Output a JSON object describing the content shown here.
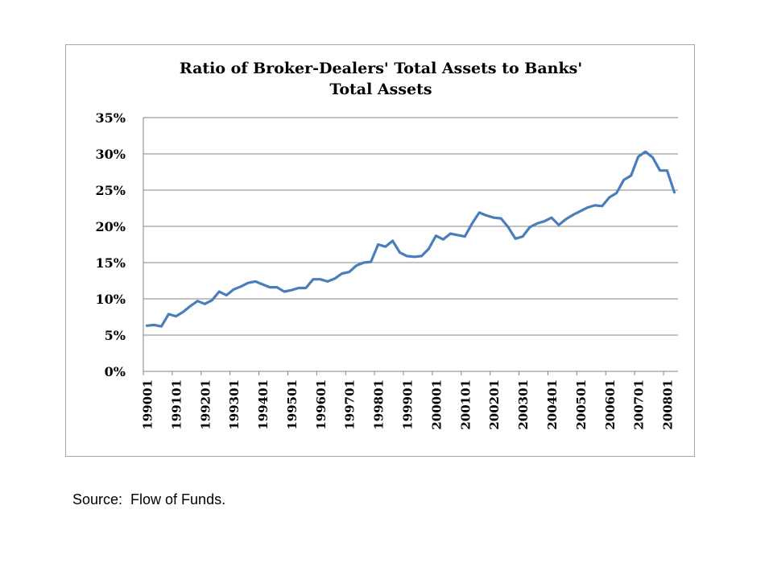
{
  "source_note": "Source:  Flow of Funds.",
  "colors": {
    "line": "#4a7ebb",
    "grid": "#868686",
    "frame": "#a6a6a6"
  },
  "chart_data": {
    "type": "line",
    "title_lines": [
      "Ratio of Broker-Dealers' Total Assets to Banks'",
      "Total Assets"
    ],
    "xlabel": "",
    "ylabel": "",
    "ylim": [
      0,
      0.35
    ],
    "yticks": [
      0,
      0.05,
      0.1,
      0.15,
      0.2,
      0.25,
      0.3,
      0.35
    ],
    "ytick_labels": [
      "0%",
      "5%",
      "10%",
      "15%",
      "20%",
      "25%",
      "30%",
      "35%"
    ],
    "xtick_labels": [
      "199001",
      "199101",
      "199201",
      "199301",
      "199401",
      "199501",
      "199601",
      "199701",
      "199801",
      "199901",
      "200001",
      "200101",
      "200201",
      "200301",
      "200401",
      "200501",
      "200601",
      "200701",
      "200801"
    ],
    "grid": true,
    "legend": false,
    "series": [
      {
        "x": [
          "1990Q1",
          "1990Q2",
          "1990Q3",
          "1990Q4",
          "1991Q1",
          "1991Q2",
          "1991Q3",
          "1991Q4",
          "1992Q1",
          "1992Q2",
          "1992Q3",
          "1992Q4",
          "1993Q1",
          "1993Q2",
          "1993Q3",
          "1993Q4",
          "1994Q1",
          "1994Q2",
          "1994Q3",
          "1994Q4",
          "1995Q1",
          "1995Q2",
          "1995Q3",
          "1995Q4",
          "1996Q1",
          "1996Q2",
          "1996Q3",
          "1996Q4",
          "1997Q1",
          "1997Q2",
          "1997Q3",
          "1997Q4",
          "1998Q1",
          "1998Q2",
          "1998Q3",
          "1998Q4",
          "1999Q1",
          "1999Q2",
          "1999Q3",
          "1999Q4",
          "2000Q1",
          "2000Q2",
          "2000Q3",
          "2000Q4",
          "2001Q1",
          "2001Q2",
          "2001Q3",
          "2001Q4",
          "2002Q1",
          "2002Q2",
          "2002Q3",
          "2002Q4",
          "2003Q1",
          "2003Q2",
          "2003Q3",
          "2003Q4",
          "2004Q1",
          "2004Q2",
          "2004Q3",
          "2004Q4",
          "2005Q1",
          "2005Q2",
          "2005Q3",
          "2005Q4",
          "2006Q1",
          "2006Q2",
          "2006Q3",
          "2006Q4",
          "2007Q1",
          "2007Q2",
          "2007Q3",
          "2007Q4",
          "2008Q1",
          "2008Q2"
        ],
        "values": [
          0.063,
          0.064,
          0.062,
          0.079,
          0.076,
          0.082,
          0.09,
          0.097,
          0.093,
          0.098,
          0.11,
          0.105,
          0.113,
          0.117,
          0.122,
          0.124,
          0.12,
          0.116,
          0.116,
          0.11,
          0.112,
          0.115,
          0.115,
          0.127,
          0.127,
          0.124,
          0.128,
          0.135,
          0.137,
          0.146,
          0.15,
          0.151,
          0.175,
          0.172,
          0.18,
          0.164,
          0.159,
          0.158,
          0.159,
          0.169,
          0.187,
          0.182,
          0.19,
          0.188,
          0.186,
          0.204,
          0.219,
          0.215,
          0.212,
          0.211,
          0.199,
          0.183,
          0.186,
          0.199,
          0.204,
          0.207,
          0.212,
          0.202,
          0.21,
          0.216,
          0.221,
          0.226,
          0.229,
          0.228,
          0.24,
          0.246,
          0.264,
          0.27,
          0.296,
          0.303,
          0.295,
          0.277,
          0.277,
          0.247
        ]
      }
    ]
  }
}
